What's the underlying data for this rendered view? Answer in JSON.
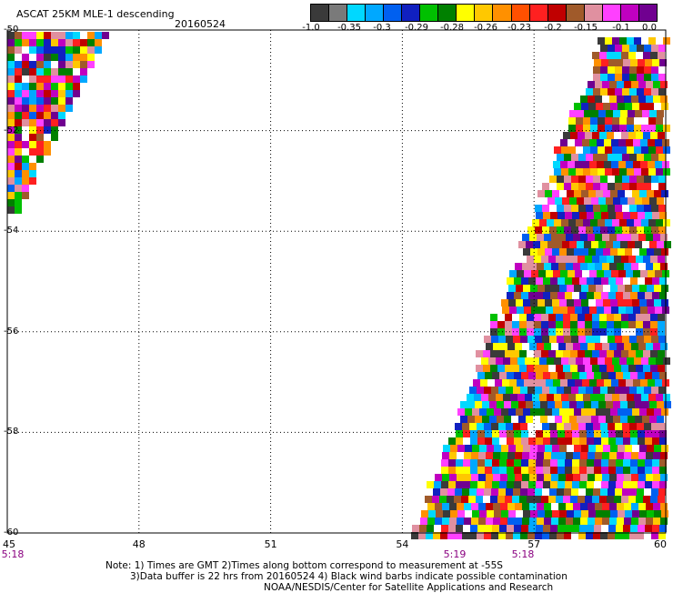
{
  "header": {
    "title": "ASCAT 25KM MLE-1 descending",
    "date": "20160524"
  },
  "colorbar": {
    "tick_labels": [
      "-1.0",
      "-0.35",
      "-0.3",
      "-0.29",
      "-0.28",
      "-0.26",
      "-0.23",
      "-0.2",
      "-0.15",
      "-0.1",
      "0.0"
    ],
    "colors": [
      "#3a3a3a",
      "#7a7a7a",
      "#00d8ff",
      "#00a8ff",
      "#0060f0",
      "#1020c0",
      "#00c000",
      "#008000",
      "#ffff00",
      "#ffc800",
      "#ff9000",
      "#ff5000",
      "#ff2020",
      "#c00000",
      "#a05a2a",
      "#e090a0",
      "#ff40ff",
      "#c000c0",
      "#700090"
    ]
  },
  "axes": {
    "lat_labels": [
      "-50",
      "-52",
      "-54",
      "-56",
      "-58",
      "-60"
    ],
    "lon_labels": [
      "45",
      "48",
      "51",
      "54",
      "57",
      "60"
    ],
    "time_labels": [
      "5:18",
      "5:19",
      "5:18"
    ]
  },
  "chart_data": {
    "type": "heatmap",
    "title": "ASCAT 25KM MLE-1 descending",
    "lat_range": [
      -60,
      -50
    ],
    "lon_range": [
      45,
      60
    ],
    "pixel_palette": [
      "#ff2020",
      "#ff9000",
      "#ffff00",
      "#ffc800",
      "#00a8ff",
      "#0060f0",
      "#1020c0",
      "#00c000",
      "#ff40ff",
      "#c000c0",
      "#700090",
      "#a05a2a",
      "#c00000",
      "#ffffff",
      "#00d8ff",
      "#008000",
      "#e090a0",
      "#3a3a3a"
    ],
    "swaths": [
      {
        "name": "",
        "description_lat": [
          -50,
          -53.6
        ],
        "description_lon": [
          45,
          47.2
        ]
      },
      {
        "name": "",
        "description_lat": [
          -50,
          -60
        ],
        "description_lon": [
          54.2,
          60
        ]
      }
    ]
  },
  "footer": {
    "line1": "Note: 1) Times are GMT 2)Times along bottom correspond to measurement at -55S",
    "line2": "3)Data buffer is 22 hrs from 20160524 4) Black wind barbs indicate possible contamination",
    "line3": "NOAA/NESDIS/Center for Satellite Applications and Research"
  }
}
